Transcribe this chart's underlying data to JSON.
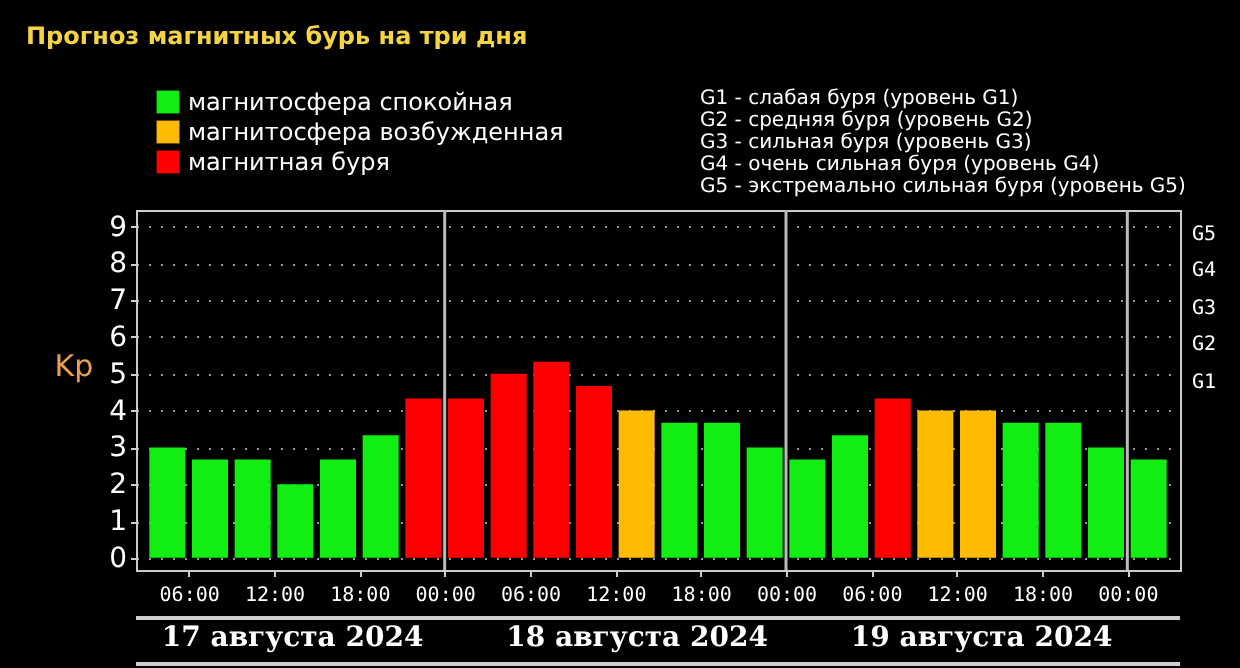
{
  "chart_data": {
    "type": "bar",
    "title": "Прогноз магнитных бурь на три дня",
    "ylabel": "Kp",
    "x": [
      "2024-08-17T04:30",
      "2024-08-17T07:30",
      "2024-08-17T10:30",
      "2024-08-17T13:30",
      "2024-08-17T16:30",
      "2024-08-17T19:30",
      "2024-08-17T22:30",
      "2024-08-18T01:30",
      "2024-08-18T04:30",
      "2024-08-18T07:30",
      "2024-08-18T10:30",
      "2024-08-18T13:30",
      "2024-08-18T16:30",
      "2024-08-18T19:30",
      "2024-08-18T22:30",
      "2024-08-19T01:30",
      "2024-08-19T04:30",
      "2024-08-19T07:30",
      "2024-08-19T10:30",
      "2024-08-19T13:30",
      "2024-08-19T16:30",
      "2024-08-19T19:30",
      "2024-08-19T22:30",
      "2024-08-20T01:30"
    ],
    "series": [
      {
        "name": "магнитосфера спокойная",
        "color": "#11ee11",
        "values": [
          3.0,
          2.67,
          2.67,
          2.0,
          2.67,
          3.33,
          null,
          null,
          null,
          null,
          null,
          null,
          3.67,
          3.67,
          3.0,
          2.67,
          3.33,
          null,
          null,
          null,
          3.67,
          3.67,
          3.0,
          2.67
        ]
      },
      {
        "name": "магнитосфера возбужденная",
        "color": "#ffbb00",
        "values": [
          null,
          null,
          null,
          null,
          null,
          null,
          null,
          null,
          null,
          null,
          null,
          4.0,
          null,
          null,
          null,
          null,
          null,
          null,
          4.0,
          4.0,
          null,
          null,
          null,
          null
        ]
      },
      {
        "name": "магнитная буря",
        "color": "#ff0000",
        "values": [
          null,
          null,
          null,
          null,
          null,
          null,
          4.33,
          4.33,
          5.0,
          5.33,
          4.67,
          null,
          null,
          null,
          null,
          null,
          null,
          4.33,
          null,
          null,
          null,
          null,
          null,
          null
        ]
      }
    ],
    "xlim": [
      "2024-08-17T03:00",
      "2024-08-20T03:00"
    ],
    "xticks": [
      {
        "value": "2024-08-17T06:00",
        "label": "06:00"
      },
      {
        "value": "2024-08-17T12:00",
        "label": "12:00"
      },
      {
        "value": "2024-08-17T18:00",
        "label": "18:00"
      },
      {
        "value": "2024-08-18T00:00",
        "label": "00:00"
      },
      {
        "value": "2024-08-18T06:00",
        "label": "06:00"
      },
      {
        "value": "2024-08-18T12:00",
        "label": "12:00"
      },
      {
        "value": "2024-08-18T18:00",
        "label": "18:00"
      },
      {
        "value": "2024-08-19T00:00",
        "label": "00:00"
      },
      {
        "value": "2024-08-19T06:00",
        "label": "06:00"
      },
      {
        "value": "2024-08-19T12:00",
        "label": "12:00"
      },
      {
        "value": "2024-08-19T18:00",
        "label": "18:00"
      },
      {
        "value": "2024-08-20T00:00",
        "label": "00:00"
      }
    ],
    "ylim": [
      -0.33,
      9.45
    ],
    "yticks": [
      0,
      1,
      2,
      3,
      4,
      5,
      6,
      7,
      8,
      9
    ],
    "ref_lines": [
      {
        "axis": "x",
        "value": "2024-08-18T00:00",
        "color": "#bbbbbb"
      },
      {
        "axis": "x",
        "value": "2024-08-19T00:00",
        "color": "#bbbbbb"
      },
      {
        "axis": "x",
        "value": "2024-08-20T00:00",
        "color": "#bbbbbb"
      }
    ],
    "grid": "y",
    "line_style": "dotted",
    "legend": "top left",
    "annotations": [
      "17 августа 2024",
      "18 августа 2024",
      "19 августа 2024",
      "G1 - слабая буря (уровень G1)",
      "G2 - средняя буря (уровень G2)",
      "G3 - сильная буря (уровень G3)",
      "G4 - очень сильная буря (уровень G4)",
      "G5 - экстремально сильная буря (уровень G5)",
      "G1",
      "G2",
      "G3",
      "G4",
      "G5"
    ]
  }
}
